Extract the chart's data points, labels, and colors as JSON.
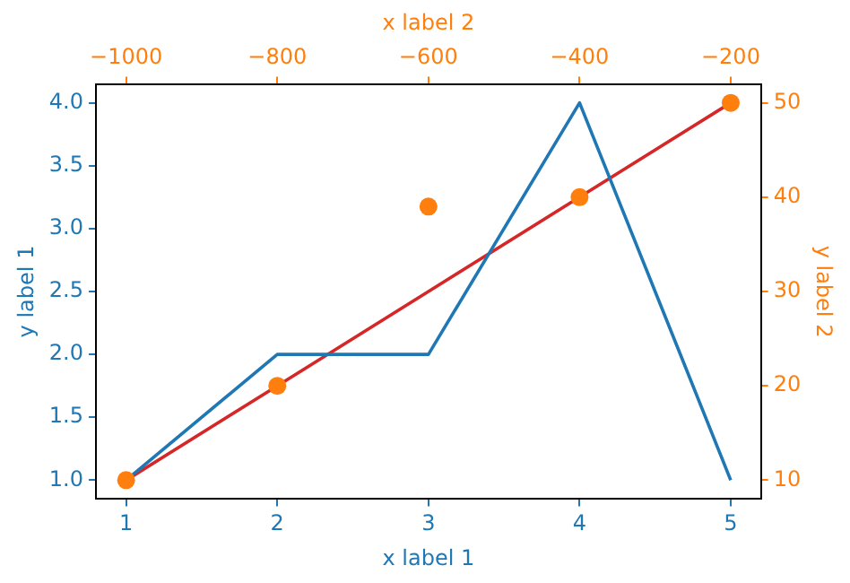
{
  "chart_data": {
    "type": "line",
    "xlabel": "x label 1",
    "ylabel": "y label 1",
    "x2label": "x label 2",
    "y2label": "y label 2",
    "xlim": [
      0.8,
      5.2
    ],
    "xticks": [
      1,
      2,
      3,
      4,
      5
    ],
    "ylim": [
      0.85,
      4.15
    ],
    "yticks": [
      {
        "value": 1,
        "label": "1.0"
      },
      {
        "value": 1.5,
        "label": "1.5"
      },
      {
        "value": 2,
        "label": "2.0"
      },
      {
        "value": 2.5,
        "label": "2.5"
      },
      {
        "value": 3,
        "label": "3.0"
      },
      {
        "value": 3.5,
        "label": "3.5"
      },
      {
        "value": 4,
        "label": "4.0"
      }
    ],
    "x2lim": [
      -1040,
      -160
    ],
    "x2ticks": [
      {
        "value": -1000,
        "label": "−1000"
      },
      {
        "value": -800,
        "label": "−800"
      },
      {
        "value": -600,
        "label": "−600"
      },
      {
        "value": -400,
        "label": "−400"
      },
      {
        "value": -200,
        "label": "−200"
      }
    ],
    "y2lim": [
      8,
      52
    ],
    "y2ticks": [
      10,
      20,
      30,
      40,
      50
    ],
    "grid": false,
    "legend": false,
    "series": [
      {
        "color": "#1f77b4",
        "x": [
          1,
          2,
          3,
          4,
          5
        ],
        "values": [
          1,
          2,
          2,
          4,
          1
        ],
        "marker": "none"
      },
      {
        "type": "line",
        "color": "#d62728",
        "axis": "y2",
        "x": [
          1,
          2,
          3,
          4,
          5
        ],
        "values": [
          10,
          20,
          30,
          40,
          50
        ],
        "marker": "none"
      },
      {
        "type": "scatter",
        "color": "#ff7f0e",
        "axis": "y2",
        "x": [
          1,
          2,
          3,
          4,
          5
        ],
        "values": [
          10,
          20,
          39,
          40,
          50
        ],
        "marker": "circle"
      }
    ]
  }
}
